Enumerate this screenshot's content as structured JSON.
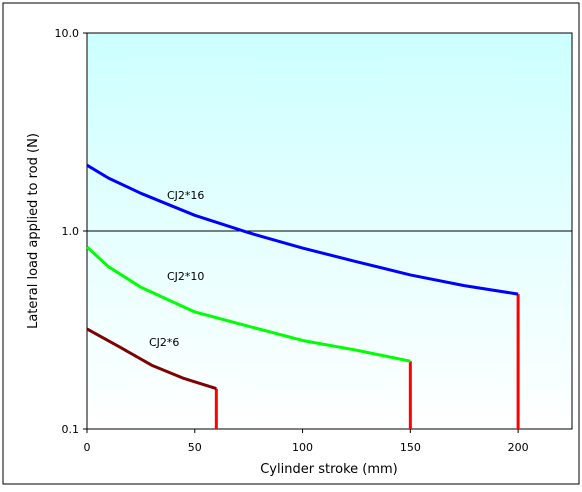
{
  "chart_data": {
    "type": "line",
    "xlabel": "Cylinder stroke (mm)",
    "ylabel": "Lateral load applied to rod (N)",
    "xlim": [
      0,
      225
    ],
    "ylim": [
      0.1,
      10
    ],
    "yscale": "log",
    "x_ticks": [
      0,
      50,
      100,
      150,
      200
    ],
    "x_tick_labels": [
      "0",
      "50",
      "100",
      "150",
      "200"
    ],
    "y_ticks": [
      0.1,
      1,
      10
    ],
    "y_tick_labels": [
      "0.1",
      "1.0",
      "10.0"
    ],
    "grid": "horizontal line at 1.0",
    "series": [
      {
        "name": "CJ2*16",
        "color": "#0000ff",
        "x": [
          0,
          10,
          25,
          50,
          75,
          100,
          125,
          150,
          175,
          200
        ],
        "y": [
          2.15,
          1.85,
          1.55,
          1.2,
          0.98,
          0.82,
          0.7,
          0.6,
          0.53,
          0.48
        ],
        "max_stroke": 200
      },
      {
        "name": "CJ2*10",
        "color": "#00ff00",
        "x": [
          0,
          10,
          25,
          50,
          75,
          100,
          125,
          150
        ],
        "y": [
          0.83,
          0.66,
          0.52,
          0.39,
          0.33,
          0.28,
          0.25,
          0.22
        ],
        "max_stroke": 150
      },
      {
        "name": "CJ2*6",
        "color": "#800000",
        "x": [
          0,
          15,
          30,
          45,
          60
        ],
        "y": [
          0.32,
          0.26,
          0.21,
          0.18,
          0.16
        ],
        "max_stroke": 60
      }
    ],
    "limit_lines_color": "#ff0000"
  }
}
